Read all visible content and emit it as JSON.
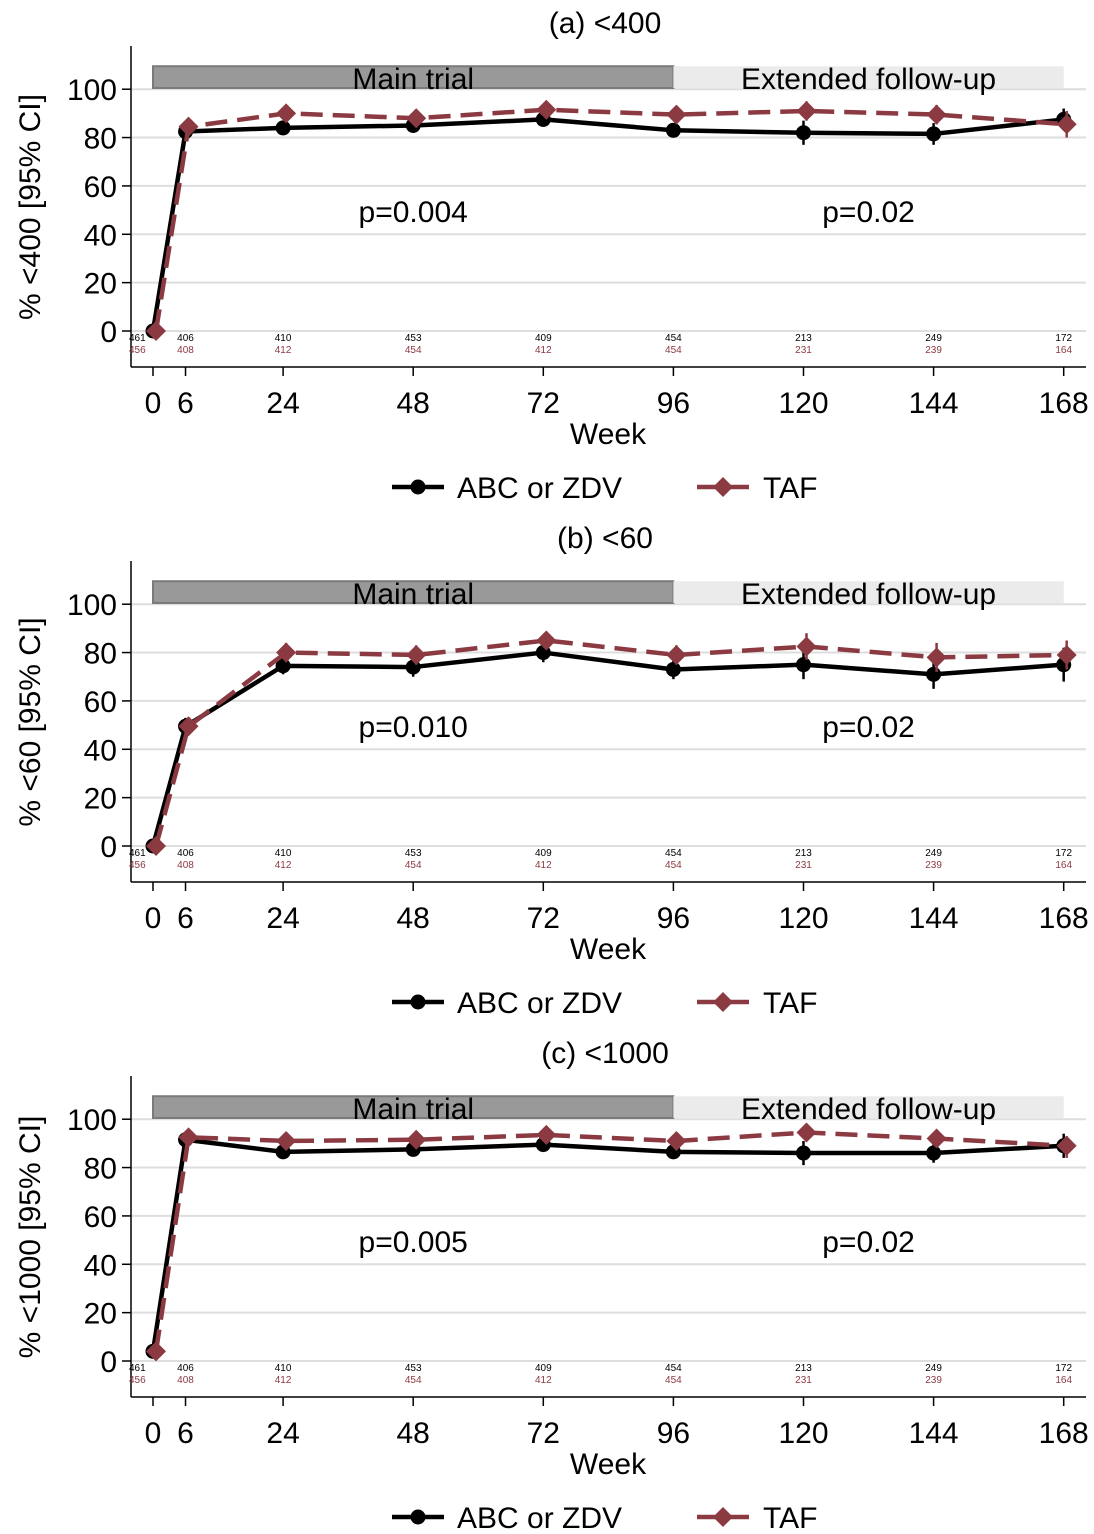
{
  "chart_data": [
    {
      "type": "line",
      "title": "(a) <400",
      "xlabel": "Week",
      "ylabel": "% <400 [95% CI]",
      "x": [
        0,
        6,
        24,
        48,
        72,
        96,
        120,
        144,
        168
      ],
      "xticks": [
        "0",
        "6",
        "24",
        "48",
        "72",
        "96",
        "120",
        "144",
        "168"
      ],
      "yticks": [
        "0",
        "20",
        "40",
        "60",
        "80",
        "100"
      ],
      "ylim": [
        -15,
        118
      ],
      "grid": true,
      "periods": [
        {
          "label": "Main trial",
          "from": 0,
          "to": 96,
          "color": "#999999"
        },
        {
          "label": "Extended follow-up",
          "from": 96,
          "to": 168,
          "color": "#ebebeb"
        }
      ],
      "pvalues": [
        "p=0.004",
        "p=0.02"
      ],
      "series": [
        {
          "name": "ABC or ZDV",
          "color": "#000000",
          "marker": "circle",
          "dashed": false,
          "values": [
            0,
            82.5,
            84,
            85,
            87.5,
            83,
            82,
            81.5,
            87.5
          ],
          "ci": [
            [
              0,
              0
            ],
            [
              80,
              85
            ],
            [
              81,
              87
            ],
            [
              82,
              88
            ],
            [
              84.5,
              90.5
            ],
            [
              80,
              86
            ],
            [
              77,
              87
            ],
            [
              77,
              86
            ],
            [
              83,
              92
            ]
          ],
          "n": [
            "461",
            "406",
            "410",
            "453",
            "409",
            "454",
            "213",
            "249",
            "172"
          ]
        },
        {
          "name": "TAF",
          "color": "#8b3a42",
          "marker": "diamond",
          "dashed": true,
          "values": [
            0,
            84.5,
            90,
            88,
            91.5,
            89.5,
            91,
            89.5,
            85.5
          ],
          "ci": [
            [
              0,
              0
            ],
            [
              82,
              87
            ],
            [
              87,
              93
            ],
            [
              85,
              91
            ],
            [
              89,
              94
            ],
            [
              87,
              92
            ],
            [
              87,
              95
            ],
            [
              85.5,
              93.5
            ],
            [
              80,
              91
            ]
          ],
          "n": [
            "456",
            "408",
            "412",
            "454",
            "412",
            "454",
            "231",
            "239",
            "164"
          ]
        }
      ]
    },
    {
      "type": "line",
      "title": "(b) <60",
      "xlabel": "Week",
      "ylabel": "% <60 [95% CI]",
      "x": [
        0,
        6,
        24,
        48,
        72,
        96,
        120,
        144,
        168
      ],
      "xticks": [
        "0",
        "6",
        "24",
        "48",
        "72",
        "96",
        "120",
        "144",
        "168"
      ],
      "yticks": [
        "0",
        "20",
        "40",
        "60",
        "80",
        "100"
      ],
      "ylim": [
        -15,
        118
      ],
      "grid": true,
      "periods": [
        {
          "label": "Main trial",
          "from": 0,
          "to": 96,
          "color": "#999999"
        },
        {
          "label": "Extended follow-up",
          "from": 96,
          "to": 168,
          "color": "#ebebeb"
        }
      ],
      "pvalues": [
        "p=0.010",
        "p=0.02"
      ],
      "series": [
        {
          "name": "ABC or ZDV",
          "color": "#000000",
          "marker": "circle",
          "dashed": false,
          "values": [
            0,
            49.5,
            74.5,
            74,
            80,
            73,
            75,
            71,
            75
          ],
          "ci": [
            [
              0,
              0
            ],
            [
              46,
              53
            ],
            [
              71,
              78
            ],
            [
              70,
              78
            ],
            [
              76,
              84
            ],
            [
              69,
              77
            ],
            [
              69,
              81
            ],
            [
              65,
              77
            ],
            [
              68,
              82
            ]
          ],
          "n": [
            "461",
            "406",
            "410",
            "453",
            "409",
            "454",
            "213",
            "249",
            "172"
          ]
        },
        {
          "name": "TAF",
          "color": "#8b3a42",
          "marker": "diamond",
          "dashed": true,
          "values": [
            0,
            49.5,
            80,
            79,
            85,
            79,
            82.5,
            78,
            79
          ],
          "ci": [
            [
              0,
              0
            ],
            [
              46,
              53
            ],
            [
              76,
              84
            ],
            [
              75,
              83
            ],
            [
              81.5,
              88.5
            ],
            [
              75,
              83
            ],
            [
              77,
              88
            ],
            [
              72,
              84
            ],
            [
              73,
              85
            ]
          ],
          "n": [
            "456",
            "408",
            "412",
            "454",
            "412",
            "454",
            "231",
            "239",
            "164"
          ]
        }
      ]
    },
    {
      "type": "line",
      "title": "(c) <1000",
      "xlabel": "Week",
      "ylabel": "% <1000 [95% CI]",
      "x": [
        0,
        6,
        24,
        48,
        72,
        96,
        120,
        144,
        168
      ],
      "xticks": [
        "0",
        "6",
        "24",
        "48",
        "72",
        "96",
        "120",
        "144",
        "168"
      ],
      "yticks": [
        "0",
        "20",
        "40",
        "60",
        "80",
        "100"
      ],
      "ylim": [
        -15,
        118
      ],
      "grid": true,
      "periods": [
        {
          "label": "Main trial",
          "from": 0,
          "to": 96,
          "color": "#999999"
        },
        {
          "label": "Extended follow-up",
          "from": 96,
          "to": 168,
          "color": "#ebebeb"
        }
      ],
      "pvalues": [
        "p=0.005",
        "p=0.02"
      ],
      "series": [
        {
          "name": "ABC or ZDV",
          "color": "#000000",
          "marker": "circle",
          "dashed": false,
          "values": [
            4,
            91.5,
            86.5,
            87.5,
            89.5,
            86.5,
            86,
            86,
            89
          ],
          "ci": [
            [
              3,
              5
            ],
            [
              89,
              94
            ],
            [
              84,
              89
            ],
            [
              85,
              90
            ],
            [
              87,
              92
            ],
            [
              84,
              89
            ],
            [
              81,
              91
            ],
            [
              82,
              90
            ],
            [
              84,
              94
            ]
          ],
          "n": [
            "461",
            "406",
            "410",
            "453",
            "409",
            "454",
            "213",
            "249",
            "172"
          ]
        },
        {
          "name": "TAF",
          "color": "#8b3a42",
          "marker": "diamond",
          "dashed": true,
          "values": [
            4,
            92.5,
            91,
            91.5,
            93.5,
            91,
            94.5,
            92,
            89
          ],
          "ci": [
            [
              3,
              5
            ],
            [
              90,
              95
            ],
            [
              88.5,
              93.5
            ],
            [
              89,
              94
            ],
            [
              91,
              96
            ],
            [
              88.5,
              93.5
            ],
            [
              91,
              98
            ],
            [
              88.5,
              95.5
            ],
            [
              84,
              93
            ]
          ],
          "n": [
            "456",
            "408",
            "412",
            "454",
            "412",
            "454",
            "231",
            "239",
            "164"
          ]
        }
      ]
    }
  ]
}
